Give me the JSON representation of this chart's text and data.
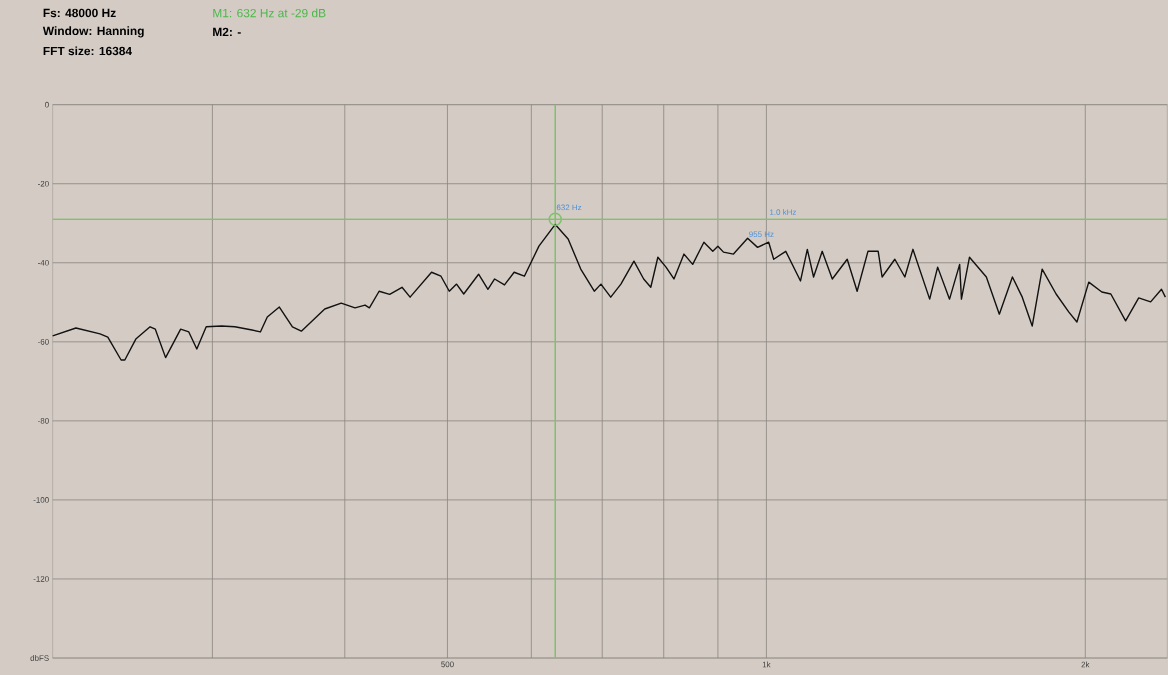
{
  "chart_data": {
    "type": "line",
    "log": "x",
    "grid": true,
    "xlim": [
      212,
      2390
    ],
    "ylim": [
      -140,
      0
    ],
    "xticks": [
      {
        "value": 300,
        "label": null
      },
      {
        "value": 400,
        "label": null
      },
      500,
      {
        "value": 600,
        "label": null
      },
      {
        "value": 700,
        "label": null
      },
      {
        "value": 800,
        "label": null
      },
      {
        "value": 900,
        "label": null
      },
      {
        "value": 1000,
        "label": "1k"
      },
      {
        "value": 2000,
        "label": "2k"
      }
    ],
    "yticks": [
      {
        "value": -140,
        "label": "dbFS"
      },
      -120,
      -100,
      -80,
      -60,
      -40,
      -20,
      0
    ],
    "ref_lines": [
      {
        "axis": "x",
        "value": 632,
        "color": "#7dc36b"
      },
      {
        "axis": "y",
        "value": -29,
        "color": "#7dc36b"
      }
    ],
    "annotations": [
      "Fs: 48000 Hz",
      "Window: Hanning",
      "FFT size: 16384",
      "M1: 632 Hz at -29 dB",
      "M2: -",
      {
        "text": "632 Hz",
        "x": 632,
        "y": -27
      },
      "1.0 kHz",
      {
        "text": "955 Hz",
        "x": 960,
        "y": -33.8
      }
    ],
    "series": [
      {
        "color": "#111111",
        "x": [
          212,
          223,
          235,
          239,
          246,
          248,
          254,
          262,
          265,
          271,
          280,
          285,
          290,
          296,
          306,
          315,
          327,
          333,
          338,
          347,
          357,
          364,
          383,
          397,
          409,
          418,
          422,
          431,
          441,
          453,
          461,
          483,
          493,
          502,
          510,
          518,
          535,
          546,
          554,
          566,
          578,
          591,
          610,
          632,
          650,
          668,
          688,
          698,
          713,
          729,
          750,
          766,
          778,
          790,
          804,
          818,
          836,
          852,
          873,
          890,
          900,
          911,
          931,
          960,
          981,
          1005,
          1016,
          1043,
          1077,
          1093,
          1108,
          1129,
          1154,
          1192,
          1218,
          1247,
          1275,
          1286,
          1322,
          1351,
          1375,
          1426,
          1451,
          1489,
          1522,
          1528,
          1555,
          1613,
          1659,
          1707,
          1744,
          1782,
          1821,
          1877,
          1930,
          1964,
          2015,
          2073,
          2114,
          2183,
          2246,
          2305,
          2360,
          2380
        ],
        "values": [
          -58.5,
          -56.5,
          -58,
          -58.8,
          -64.6,
          -64.6,
          -59.3,
          -56.2,
          -56.8,
          -64,
          -56.8,
          -57.5,
          -61.8,
          -56.2,
          -56,
          -56.2,
          -57,
          -57.5,
          -53.7,
          -51.2,
          -56.2,
          -57.3,
          -51.7,
          -50.2,
          -51.4,
          -50.7,
          -51.4,
          -47.2,
          -48,
          -46.2,
          -48.7,
          -42.4,
          -43.4,
          -47.2,
          -45.4,
          -47.9,
          -42.9,
          -46.7,
          -44.1,
          -45.6,
          -42.4,
          -43.4,
          -35.8,
          -30.3,
          -34,
          -41.6,
          -47.2,
          -45.4,
          -48.7,
          -45.4,
          -39.6,
          -44.1,
          -46.2,
          -38.6,
          -41.1,
          -44.1,
          -37.8,
          -40.4,
          -34.8,
          -37.1,
          -35.8,
          -37.3,
          -37.8,
          -33.8,
          -36.1,
          -34.8,
          -39.1,
          -37.1,
          -44.6,
          -36.6,
          -43.6,
          -37.1,
          -44.1,
          -39.1,
          -47.2,
          -37.1,
          -37.1,
          -43.6,
          -39.1,
          -43.6,
          -36.6,
          -49.2,
          -41.1,
          -49.2,
          -40.4,
          -49.2,
          -38.6,
          -43.6,
          -53,
          -43.6,
          -48.7,
          -56,
          -41.6,
          -47.9,
          -52.5,
          -55,
          -44.9,
          -47.4,
          -47.9,
          -54.7,
          -48.9,
          -49.9,
          -46.7,
          -48.7
        ]
      },
      {
        "type": "scatter",
        "color": "#7dc36b",
        "marker": "circle",
        "x": [
          632
        ],
        "values": [
          -29
        ]
      }
    ]
  }
}
